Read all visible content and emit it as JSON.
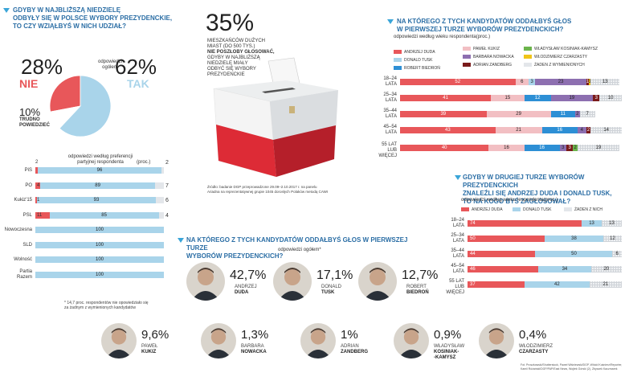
{
  "q1": {
    "title_lines": [
      "GDYBY W NAJBLIŻSZĄ NIEDZIELĘ",
      "ODBYŁY SIĘ W POLSCE WYBORY PREZYDENCKIE,",
      "TO CZY WZIĄŁBYŚ W NICH UDZIAŁ?"
    ],
    "no_pct": "28%",
    "no_label": "NIE",
    "yes_pct": "62%",
    "yes_label": "TAK",
    "dk_pct": "10%",
    "dk_label_lines": [
      "TRUDNO",
      "POWIEDZIEĆ"
    ],
    "overall_label_lines": [
      "odpowiedzi",
      "ogółem"
    ],
    "parties_caption_lines": [
      "odpowiedzi według preferencji",
      "partyjnej respondenta"
    ],
    "unit": "(proc.)",
    "footnote_lines": [
      "* 14,7 proc. respondentów nie opowiedziało się",
      "za żadnym z wymienionych kandydatów"
    ]
  },
  "ballot": {
    "pct": "35%",
    "text_lines": [
      "MIESZKAŃCÓW DUŻYCH",
      "MIAST (DO 500 TYS.)"
    ],
    "bold_lines": [
      "NIE POSZŁOBY GŁOSOWAĆ,"
    ],
    "text2_lines": [
      "GDYBY W NAJBLIŻSZĄ",
      "NIEDZIELĘ MIAŁY",
      "ODBYĆ SIĘ WYBORY",
      "PREZYDENCKIE"
    ],
    "source_lines": [
      "Źródło: badanie DGP przeprowadzone 29.09–2.10.2017 r. na panelu",
      "Ariadna na reprezentatywnej grupie 1045 dorosłych Polaków metodą CAWI"
    ]
  },
  "q2": {
    "title_lines": [
      "NA KTÓREGO Z TYCH KANDYDATÓW ODDAŁBYŚ GŁOS",
      "W PIERWSZEJ TURZE WYBORÓW PREZYDENCKICH?"
    ],
    "caption": "odpowiedzi według wieku respondenta",
    "unit": "(proc.)"
  },
  "q3": {
    "title_lines": [
      "GDYBY W DRUGIEJ TURZE WYBORÓW PREZYDENCKICH",
      "ZNALEŹLI SIĘ ANDRZEJ DUDA I DONALD TUSK,",
      "TO NA KOGO BYŚ ZAGŁOSOWAŁ?"
    ],
    "caption": "odpowiedzi według wieku respondenta",
    "unit": "(proc.)"
  },
  "q4": {
    "title_lines": [
      "NA KTÓREGO Z TYCH KANDYDATÓW ODDAŁBYŚ GŁOS W PIERWSZEJ TURZE",
      "WYBORÓW PREZYDENCKICH?"
    ],
    "caption": "odpowiedzi ogółem*"
  },
  "candidates": [
    {
      "pct": "42,7%",
      "first": "ANDRZEJ",
      "last": "DUDA"
    },
    {
      "pct": "17,1%",
      "first": "DONALD",
      "last": "TUSK"
    },
    {
      "pct": "12,7%",
      "first": "ROBERT",
      "last": "BIEDROŃ"
    },
    {
      "pct": "9,6%",
      "first": "PAWEŁ",
      "last": "KUKIZ"
    },
    {
      "pct": "1,3%",
      "first": "BARBARA",
      "last": "NOWACKA"
    },
    {
      "pct": "1%",
      "first": "ADRIAN",
      "last": "ZANDBERG"
    },
    {
      "pct": "0,9%",
      "first": "WŁADYSŁAW",
      "last": "KOSINIAK-\n-KAMYSZ"
    },
    {
      "pct": "0,4%",
      "first": "WŁODZIMIERZ",
      "last": "CZARZASTY"
    }
  ],
  "credits": [
    "Fot. Proszkowski/Shutterstock, Paweł Wiśniewski/DGP, Witold Kuśnierz/Reporter,",
    "Kamil Różański/DGP/PAP/East News, Wojtek Górski (2), Zbyszek Kaczmarek"
  ],
  "colors": {
    "red": "#e8575a",
    "lightblue": "#a9d4ea",
    "blue": "#2d8fd5",
    "pink": "#f2bfc3",
    "purple": "#8d6fb0",
    "darkred": "#7a1a1a",
    "green": "#6cb44c",
    "yellow": "#f0c419",
    "grey": "#e3e6ea",
    "accent": "#3aa5d8"
  },
  "chart_data": [
    {
      "type": "pie",
      "title": "",
      "categories": [
        "NIE",
        "TAK",
        "TRUDNO POWIEDZIEĆ"
      ],
      "values": [
        28,
        62,
        10
      ]
    },
    {
      "type": "bar",
      "title": "odpowiedzi według preferencji partyjnej respondenta",
      "categories": [
        "PiS",
        "PO",
        "Kukiz'15",
        "PSL",
        "Nowoczesna",
        "SLD",
        "Wolność",
        "Partia Razem"
      ],
      "series": [
        {
          "name": "NIE",
          "values": [
            2,
            4,
            1,
            11,
            0,
            0,
            0,
            0
          ]
        },
        {
          "name": "TAK",
          "values": [
            96,
            89,
            93,
            85,
            100,
            100,
            100,
            100
          ]
        },
        {
          "name": "TRUDNO POWIEDZIEĆ",
          "values": [
            2,
            7,
            6,
            4,
            0,
            0,
            0,
            0
          ]
        }
      ],
      "unit": "(proc.)"
    },
    {
      "type": "bar",
      "title": "NA KTÓREGO Z TYCH KANDYDATÓW ODDAŁBYŚ GŁOS W PIERWSZEJ TURZE WYBORÓW PREZYDENCKICH?",
      "categories": [
        "18–24 LATA",
        "25–34 LATA",
        "35–44 LATA",
        "45–54 LATA",
        "55 LAT LUB WIĘCEJ"
      ],
      "series": [
        {
          "name": "ANDRZEJ DUDA",
          "values": [
            52,
            41,
            39,
            43,
            40
          ]
        },
        {
          "name": "PAWEŁ KUKIZ",
          "values": [
            6,
            15,
            29,
            21,
            16
          ]
        },
        {
          "name": "DONALD TUSK",
          "values": [
            3,
            0,
            0,
            0,
            0
          ]
        },
        {
          "name": "ROBERT BIEDROŃ",
          "values": [
            0,
            12,
            11,
            16,
            16
          ]
        },
        {
          "name": "BARBARA NOWACKA",
          "values": [
            23,
            19,
            2,
            4,
            3
          ]
        },
        {
          "name": "ADRIAN ZANDBERG",
          "values": [
            1,
            3,
            0,
            2,
            3
          ]
        },
        {
          "name": "WŁADYSŁAW KOSINIAK-KAMYSZ",
          "values": [
            0,
            0,
            0,
            0,
            2
          ]
        },
        {
          "name": "WŁODZIMIERZ CZARZASTY",
          "values": [
            1,
            0,
            0,
            0,
            0
          ]
        },
        {
          "name": "ŻADEN Z WYMIENIONYCH",
          "values": [
            13,
            10,
            7,
            14,
            19
          ]
        }
      ],
      "legend": [
        "ANDRZEJ DUDA",
        "PAWEŁ KUKIZ",
        "WŁADYSŁAW KOSINIAK-KAMYSZ",
        "DONALD TUSK",
        "BARBARA NOWACKA",
        "WŁODZIMIERZ CZARZASTY",
        "ROBERT BIEDROŃ",
        "ADRIAN ZANDBERG",
        "ŻADEN Z WYMIENIONYCH"
      ],
      "unit": "(proc.)"
    },
    {
      "type": "bar",
      "title": "GDYBY W DRUGIEJ TURZE WYBORÓW PREZYDENCKICH ZNALEŹLI SIĘ ANDRZEJ DUDA I DONALD TUSK, TO NA KOGO BYŚ ZAGŁOSOWAŁ?",
      "categories": [
        "18–24 LATA",
        "25–34 LATA",
        "35–44 LATA",
        "45–54 LATA",
        "55 LAT LUB WIĘCEJ"
      ],
      "series": [
        {
          "name": "ANDRZEJ DUDA",
          "values": [
            74,
            50,
            44,
            46,
            37
          ]
        },
        {
          "name": "DONALD TUSK",
          "values": [
            13,
            38,
            50,
            34,
            42
          ]
        },
        {
          "name": "ŻADEN Z NICH",
          "values": [
            13,
            12,
            6,
            20,
            21
          ]
        }
      ],
      "unit": "(proc.)"
    },
    {
      "type": "bar",
      "title": "NA KTÓREGO Z TYCH KANDYDATÓW ODDAŁBYŚ GŁOS W PIERWSZEJ TURZE WYBORÓW PREZYDENCKICH?",
      "categories": [
        "ANDRZEJ DUDA",
        "DONALD TUSK",
        "ROBERT BIEDROŃ",
        "PAWEŁ KUKIZ",
        "BARBARA NOWACKA",
        "ADRIAN ZANDBERG",
        "WŁADYSŁAW KOSINIAK-KAMYSZ",
        "WŁODZIMIERZ CZARZASTY"
      ],
      "values": [
        42.7,
        17.1,
        12.7,
        9.6,
        1.3,
        1.0,
        0.9,
        0.4
      ]
    }
  ]
}
